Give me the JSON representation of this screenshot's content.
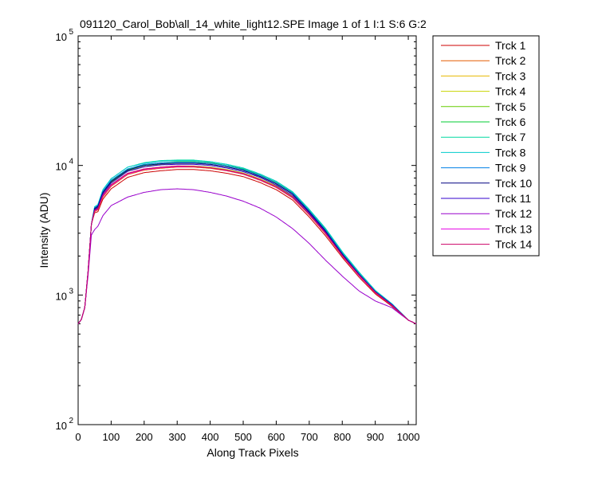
{
  "chart_data": {
    "type": "line",
    "title": "091120_Carol_Bob\\all_14_white_light12.SPE  Image 1 of 1  I:1  S:6  G:2",
    "xlabel": "Along Track Pixels",
    "ylabel": "Intensity (ADU)",
    "xlim": [
      0,
      1024
    ],
    "ylim": [
      100,
      100000
    ],
    "yscale": "log",
    "grid": false,
    "legend_position": "outside-right-top",
    "x_ticks": [
      "0",
      "100",
      "200",
      "300",
      "400",
      "500",
      "600",
      "700",
      "800",
      "900",
      "1000"
    ],
    "y_ticks": [
      {
        "base": "10",
        "exp": "2"
      },
      {
        "base": "10",
        "exp": "3"
      },
      {
        "base": "10",
        "exp": "4"
      },
      {
        "base": "10",
        "exp": "5"
      }
    ],
    "x": [
      0,
      10,
      20,
      30,
      40,
      50,
      60,
      75,
      100,
      150,
      200,
      250,
      300,
      350,
      400,
      450,
      500,
      550,
      600,
      650,
      700,
      750,
      800,
      850,
      900,
      950,
      1000,
      1024
    ],
    "series": [
      {
        "name": "Trck 1",
        "color": "#cc0000",
        "values": [
          600,
          650,
          800,
          1500,
          3500,
          4300,
          4400,
          5500,
          6600,
          8100,
          8800,
          9100,
          9300,
          9300,
          9100,
          8700,
          8200,
          7400,
          6500,
          5400,
          4000,
          2850,
          1950,
          1380,
          1020,
          820,
          640,
          600
        ]
      },
      {
        "name": "Trck 2",
        "color": "#e65c00",
        "values": [
          600,
          650,
          800,
          1500,
          3500,
          4400,
          4550,
          5700,
          6900,
          8500,
          9200,
          9500,
          9700,
          9700,
          9500,
          9100,
          8550,
          7700,
          6750,
          5600,
          4150,
          2950,
          2000,
          1420,
          1040,
          830,
          640,
          600
        ]
      },
      {
        "name": "Trck 3",
        "color": "#e6b800",
        "values": [
          600,
          650,
          800,
          1500,
          3500,
          4450,
          4600,
          5800,
          7000,
          8600,
          9300,
          9600,
          9800,
          9800,
          9600,
          9200,
          8650,
          7800,
          6850,
          5700,
          4200,
          3000,
          2020,
          1430,
          1050,
          835,
          640,
          600
        ]
      },
      {
        "name": "Trck 4",
        "color": "#c8d400",
        "values": [
          600,
          650,
          800,
          1500,
          3500,
          4500,
          4700,
          5900,
          7100,
          8700,
          9400,
          9700,
          9900,
          9900,
          9700,
          9300,
          8750,
          7900,
          6950,
          5750,
          4250,
          3050,
          2050,
          1440,
          1055,
          840,
          640,
          600
        ]
      },
      {
        "name": "Trck 5",
        "color": "#66cc00",
        "values": [
          600,
          650,
          800,
          1500,
          3500,
          4600,
          4800,
          6100,
          7400,
          9100,
          9800,
          10200,
          10400,
          10400,
          10200,
          9750,
          9150,
          8250,
          7250,
          6000,
          4400,
          3150,
          2100,
          1480,
          1070,
          850,
          640,
          600
        ]
      },
      {
        "name": "Trck 6",
        "color": "#00cc33",
        "values": [
          600,
          650,
          800,
          1500,
          3500,
          4700,
          4900,
          6300,
          7600,
          9300,
          10100,
          10500,
          10700,
          10700,
          10500,
          10000,
          9400,
          8450,
          7400,
          6150,
          4500,
          3200,
          2130,
          1500,
          1080,
          855,
          640,
          600
        ]
      },
      {
        "name": "Trck 7",
        "color": "#00d9a0",
        "values": [
          600,
          650,
          800,
          1500,
          3500,
          4800,
          5000,
          6500,
          7900,
          9700,
          10500,
          10900,
          11000,
          11000,
          10700,
          10200,
          9550,
          8600,
          7550,
          6250,
          4580,
          3250,
          2160,
          1510,
          1085,
          858,
          640,
          600
        ]
      },
      {
        "name": "Trck 8",
        "color": "#00cccc",
        "values": [
          600,
          650,
          800,
          1500,
          3500,
          4800,
          5000,
          6500,
          7900,
          9700,
          10400,
          10800,
          10900,
          10900,
          10700,
          10200,
          9550,
          8600,
          7550,
          6250,
          4580,
          3250,
          2160,
          1510,
          1085,
          858,
          640,
          600
        ]
      },
      {
        "name": "Trck 9",
        "color": "#0080e6",
        "values": [
          600,
          650,
          800,
          1500,
          3500,
          4700,
          4900,
          6300,
          7700,
          9400,
          10200,
          10500,
          10600,
          10600,
          10400,
          9950,
          9300,
          8400,
          7350,
          6100,
          4450,
          3150,
          2100,
          1470,
          1065,
          850,
          640,
          600
        ]
      },
      {
        "name": "Trck 10",
        "color": "#000080",
        "values": [
          600,
          650,
          800,
          1500,
          3500,
          4650,
          4850,
          6200,
          7500,
          9200,
          10000,
          10300,
          10400,
          10400,
          10200,
          9750,
          9150,
          8250,
          7200,
          6000,
          4380,
          3100,
          2070,
          1450,
          1060,
          845,
          640,
          600
        ]
      },
      {
        "name": "Trck 11",
        "color": "#3300cc",
        "values": [
          600,
          650,
          800,
          1500,
          3500,
          4550,
          4750,
          6050,
          7300,
          9000,
          9750,
          10100,
          10200,
          10200,
          10000,
          9550,
          8950,
          8100,
          7050,
          5850,
          4300,
          3050,
          2040,
          1440,
          1055,
          842,
          640,
          600
        ]
      },
      {
        "name": "Trck 12",
        "color": "#9900cc",
        "values": [
          600,
          650,
          800,
          1400,
          2900,
          3200,
          3400,
          4100,
          4900,
          5700,
          6200,
          6500,
          6600,
          6500,
          6200,
          5800,
          5300,
          4700,
          4000,
          3250,
          2500,
          1850,
          1400,
          1080,
          900,
          800,
          640,
          600
        ]
      },
      {
        "name": "Trck 13",
        "color": "#e600e6",
        "values": [
          600,
          650,
          800,
          1500,
          3500,
          4450,
          4600,
          5800,
          7000,
          8600,
          9300,
          9600,
          9800,
          9800,
          9600,
          9150,
          8600,
          7750,
          6800,
          5650,
          4180,
          2980,
          2010,
          1420,
          1045,
          832,
          640,
          600
        ]
      },
      {
        "name": "Trck 14",
        "color": "#cc0066",
        "values": [
          600,
          650,
          800,
          1500,
          3500,
          4500,
          4650,
          5900,
          7100,
          8700,
          9400,
          9700,
          9900,
          9850,
          9600,
          9200,
          8650,
          7800,
          6850,
          5700,
          4200,
          3000,
          2020,
          1430,
          1050,
          835,
          640,
          600
        ]
      }
    ]
  }
}
